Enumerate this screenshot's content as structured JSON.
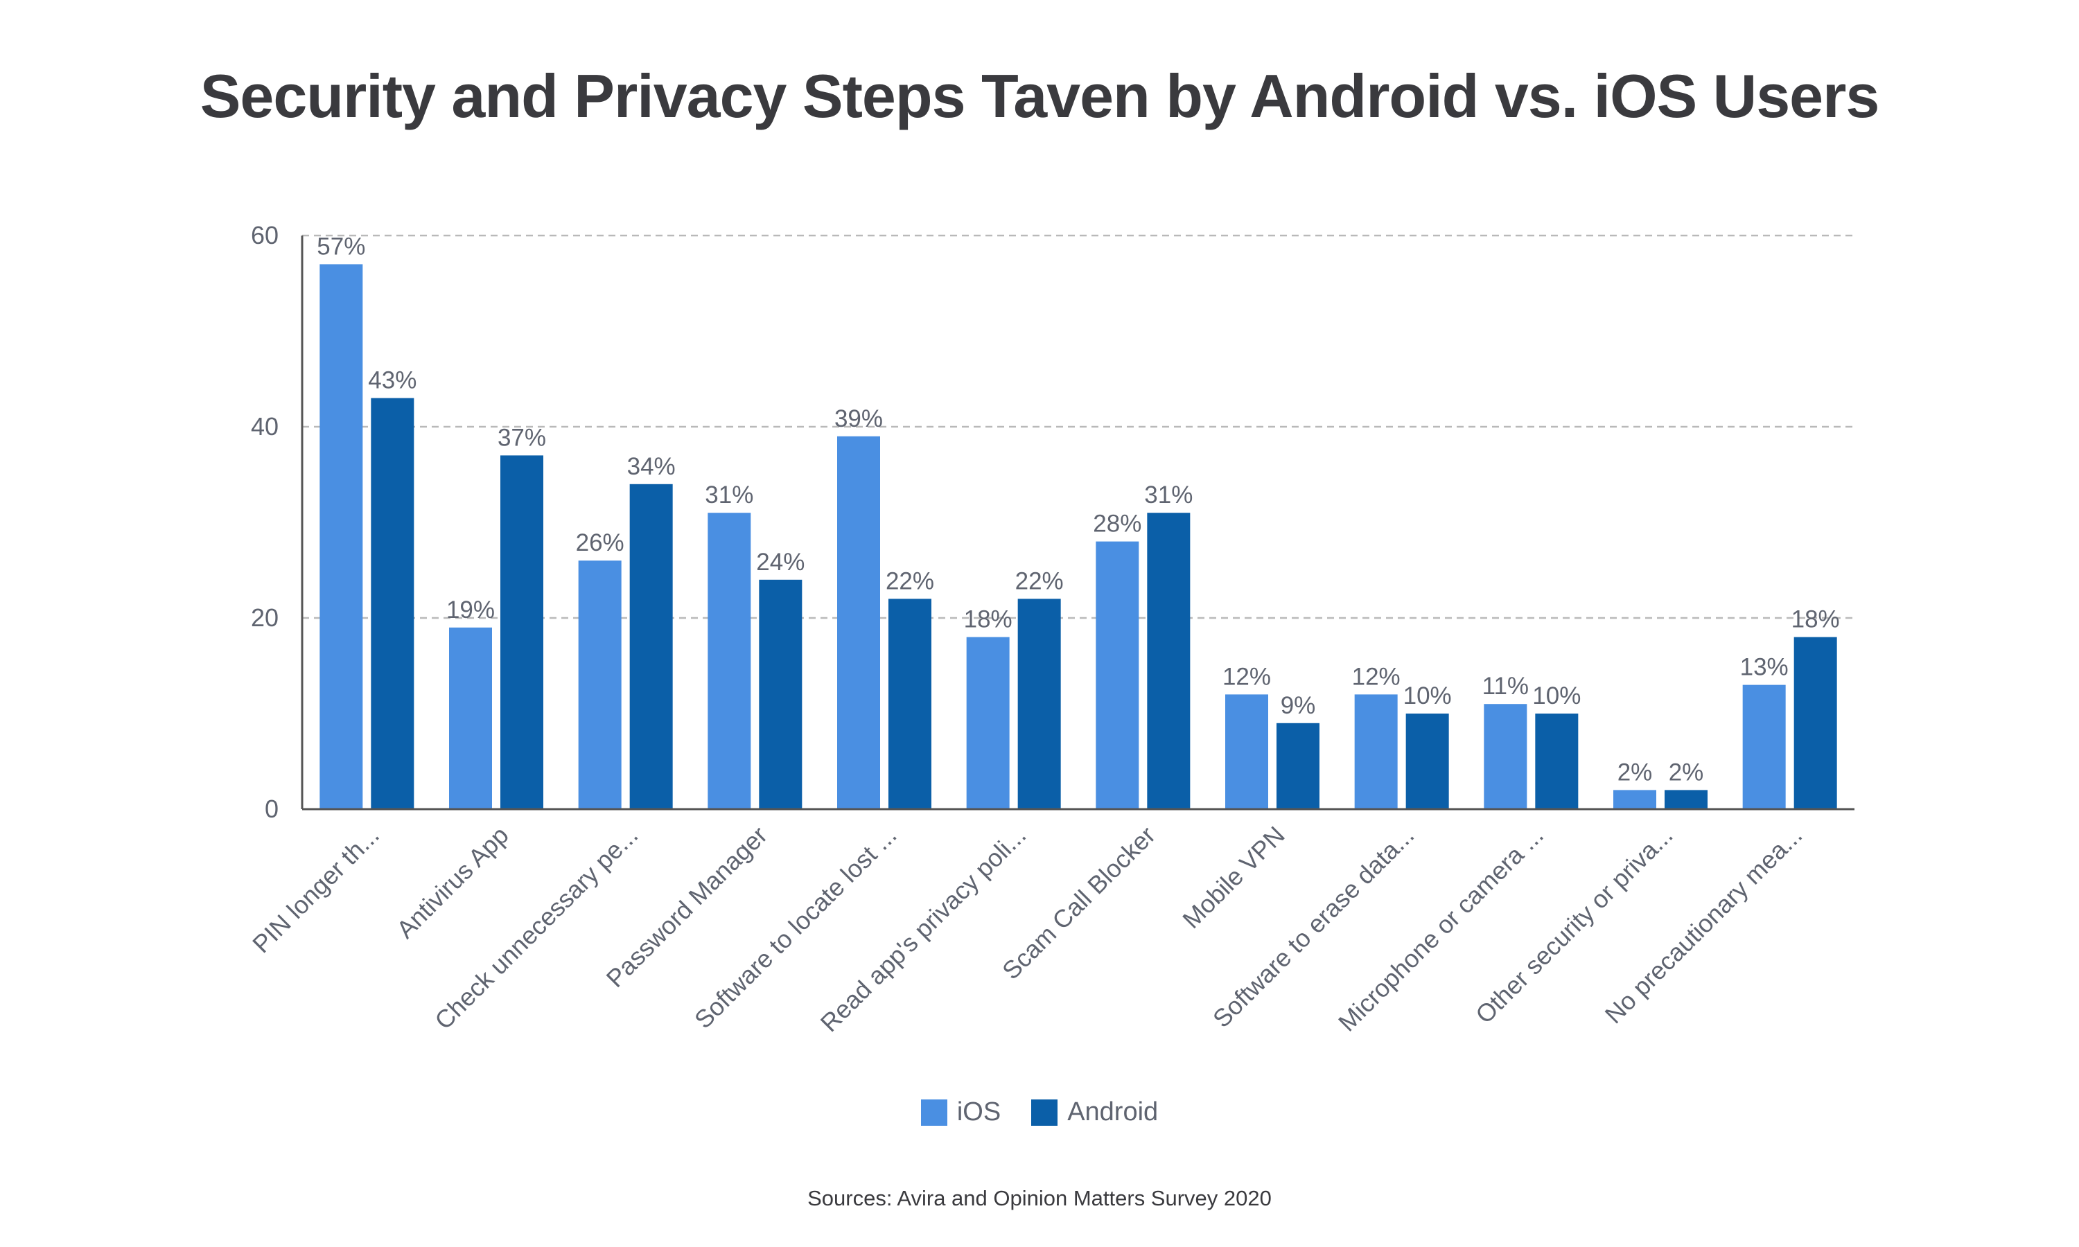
{
  "colors": {
    "ios": "#4a8fe2",
    "android": "#0b5fa8",
    "grid": "#b9b9b9",
    "axis": "#555555",
    "text": "#5f6470",
    "title": "#3a3a3e"
  },
  "legend": {
    "ios_label": "iOS",
    "android_label": "Android"
  },
  "source": "Sources: Avira and Opinion Matters Survey 2020",
  "chart_data": {
    "type": "bar",
    "title": "Security and Privacy Steps Taven by Android vs. iOS Users",
    "xlabel": "",
    "ylabel": "",
    "ylim": [
      0,
      60
    ],
    "yticks": [
      0,
      20,
      40,
      60
    ],
    "grid": true,
    "legend_position": "bottom-center",
    "categories": [
      "PIN longer th...",
      "Antivirus App",
      "Check unnecessary pe...",
      "Password Manager",
      "Software to locate lost ...",
      "Read app's privacy poli...",
      "Scam Call Blocker",
      "Mobile VPN",
      "Software to erase data...",
      "Microphone or camera ...",
      "Other security or priva...",
      "No precautionary mea..."
    ],
    "series": [
      {
        "name": "iOS",
        "values": [
          57,
          19,
          26,
          31,
          39,
          18,
          28,
          12,
          12,
          11,
          2,
          13
        ],
        "labels": [
          "57%",
          "19%",
          "26%",
          "31%",
          "39%",
          "18%",
          "28%",
          "12%",
          "12%",
          "11%",
          "2%",
          "13%"
        ]
      },
      {
        "name": "Android",
        "values": [
          43,
          37,
          34,
          24,
          22,
          22,
          31,
          9,
          10,
          10,
          2,
          18
        ],
        "labels": [
          "43%",
          "37%",
          "34%",
          "24%",
          "22%",
          "22%",
          "31%",
          "9%",
          "10%",
          "10%",
          "2%",
          "18%"
        ]
      }
    ]
  }
}
